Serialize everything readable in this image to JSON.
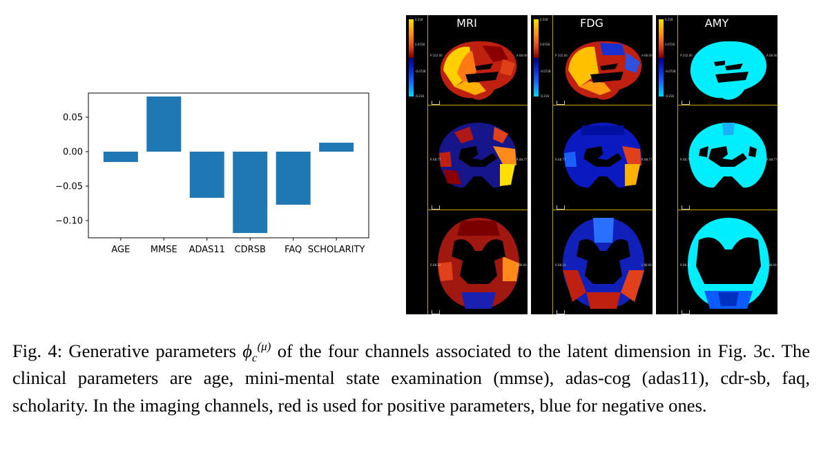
{
  "chart_data": {
    "type": "bar",
    "categories": [
      "AGE",
      "MMSE",
      "ADAS11",
      "CDRSB",
      "FAQ",
      "SCHOLARITY"
    ],
    "values": [
      -0.015,
      0.08,
      -0.067,
      -0.118,
      -0.077,
      0.013
    ],
    "ylim": [
      -0.125,
      0.085
    ],
    "yticks": [
      0.05,
      0.0,
      -0.05,
      -0.1
    ],
    "ytick_labels": [
      "0.05",
      "0.00",
      "−0.05",
      "−0.10"
    ],
    "bar_color": "#1f77b4",
    "title": "",
    "xlabel": "",
    "ylabel": ""
  },
  "brain_panels": [
    {
      "title": "MRI",
      "cbar_labels": [
        "0.218",
        "0.0728",
        "-0.0728",
        "-0.218"
      ],
      "views": {
        "sagittal": {
          "right": "A 68.00",
          "left": "P 102.00"
        },
        "coronal": {
          "right": "R 88.77",
          "left": "R 68.77"
        },
        "axial": {
          "right": "L 88.66",
          "left": "R 88.14"
        }
      }
    },
    {
      "title": "FDG",
      "cbar_labels": [
        "0.218",
        "0.0728",
        "-0.0728",
        "-0.218"
      ],
      "views": {
        "sagittal": {
          "right": "A 68.00",
          "left": "P 102.00"
        },
        "coronal": {
          "right": "R 88.77",
          "left": "R 68.77"
        },
        "axial": {
          "right": "L 88.66",
          "left": "R 88.14"
        }
      }
    },
    {
      "title": "AMY",
      "cbar_labels": [
        "0.218",
        "0.0728",
        "-0.0728",
        "-0.218"
      ],
      "views": {
        "sagittal": {
          "right": "A 68.00",
          "left": "P 102.00"
        },
        "coronal": {
          "right": "R 88.77",
          "left": "R 68.77"
        },
        "axial": {
          "right": "L 88.66",
          "left": "R 88.14"
        }
      }
    }
  ],
  "caption": {
    "text_before": "Fig. 4: Generative parameters ",
    "symbol": "ϕ",
    "sub": "c",
    "sup": "(μ)",
    "text_after": " of the four channels associated to the latent dimension in Fig. 3c. The clinical parameters are age, mini-mental state examination (mmse), adas-cog (adas11), cdr-sb, faq, scholarity. In the imaging channels, red is used for positive parameters, blue for negative ones."
  },
  "colors": {
    "positive_scale": [
      "#6b0000",
      "#b01818",
      "#e0401a",
      "#ff8a1c",
      "#ffe000"
    ],
    "negative_scale": [
      "#00008a",
      "#0a28d8",
      "#1a60ff",
      "#00d8ff"
    ],
    "amy_fill": "#00eeff",
    "amy_dark": "#0a5cff"
  }
}
